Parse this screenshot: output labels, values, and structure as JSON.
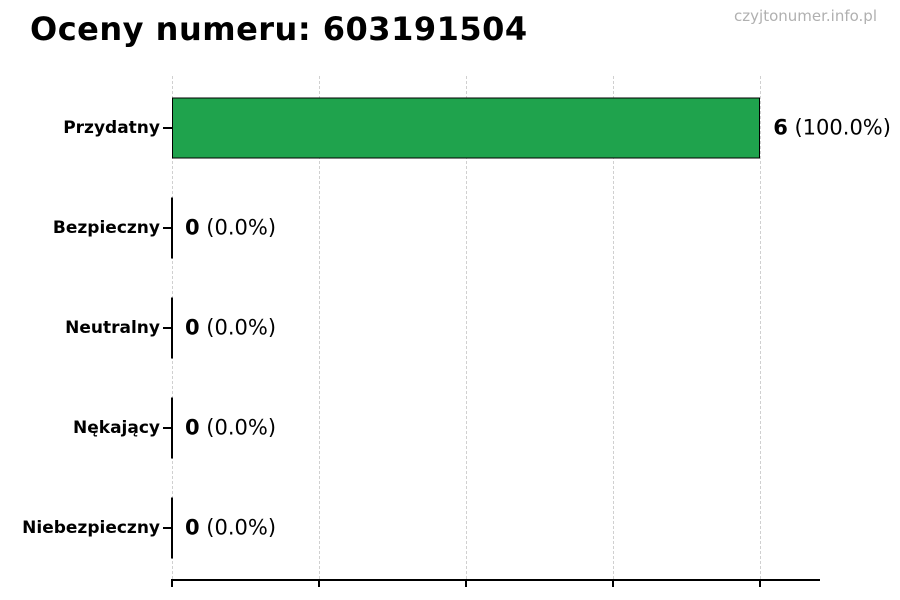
{
  "page": {
    "watermark": "czyjtonumer.info.pl"
  },
  "chart_data": {
    "type": "bar",
    "orientation": "horizontal",
    "title": "Oceny numeru: 603191504",
    "categories": [
      "Przydatny",
      "Bezpieczny",
      "Neutralny",
      "Nękający",
      "Niebezpieczny"
    ],
    "values": [
      6,
      0,
      0,
      0,
      0
    ],
    "percents": [
      "100.0%",
      "0.0%",
      "0.0%",
      "0.0%",
      "0.0%"
    ],
    "bar_labels": [
      "6 (100.0%)",
      "0 (0.0%)",
      "0 (0.0%)",
      "0 (0.0%)",
      "0 (0.0%)"
    ],
    "xlabel": "",
    "ylabel": "",
    "xlim": [
      0,
      6.61
    ],
    "xticks": [
      0,
      1.5,
      3.0,
      4.5,
      6.0
    ],
    "xtick_labels_visible": false,
    "grid": "vertical-dashed",
    "legend": "none",
    "colors": {
      "bar_fill": "#1fa34d",
      "bar_edge": "#000000",
      "grid_line": "#d0d0d0",
      "axis_line": "#000000",
      "text": "#000000",
      "watermark": "#b0b0b0",
      "background": "#ffffff"
    }
  }
}
